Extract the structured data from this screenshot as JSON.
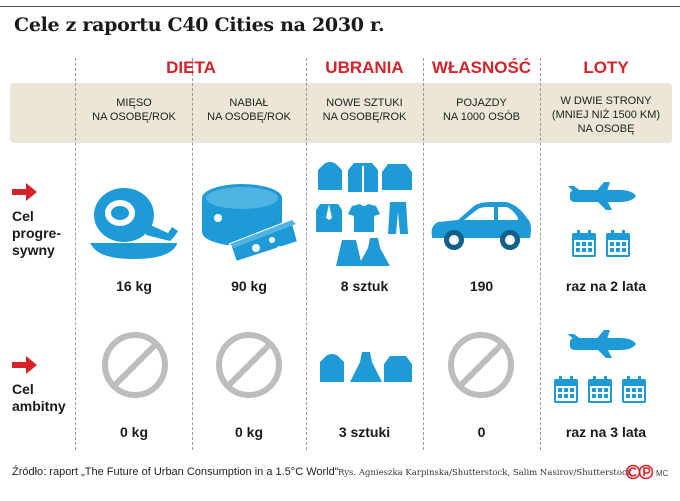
{
  "title": "Cele z raportu C40 Cities na 2030 r.",
  "categories": {
    "dieta": "DIETA",
    "ubrania": "UBRANIA",
    "wlasnosc": "WŁASNOŚĆ",
    "loty": "LOTY"
  },
  "columns": [
    {
      "header": [
        "MIĘSO",
        "NA OSOBĘ/ROK"
      ]
    },
    {
      "header": [
        "NABIAŁ",
        "NA OSOBĘ/ROK"
      ]
    },
    {
      "header": [
        "NOWE SZTUKI",
        "NA OSOBĘ/ROK"
      ]
    },
    {
      "header": [
        "POJAZDY",
        "NA 1000 OSÓB"
      ]
    },
    {
      "header": [
        "W DWIE STRONY",
        "(MNIEJ NIŻ 1500 KM)",
        "NA OSOBĘ"
      ]
    }
  ],
  "rows": [
    {
      "label": [
        "Cel",
        "progre-",
        "sywny"
      ],
      "values": [
        "16 kg",
        "90 kg",
        "8 sztuk",
        "190",
        "raz na 2 lata"
      ]
    },
    {
      "label": [
        "Cel",
        "ambitny"
      ],
      "values": [
        "0 kg",
        "0 kg",
        "3 sztuki",
        "0",
        "raz na 3 lata"
      ]
    }
  ],
  "footer": {
    "source": "Źródło: raport „The Future of Urban Consumption in a 1.5°C World\"",
    "credits": "Rys. Agnieszka Karpinska/Shutterstock, Salim Nasirov/Shutterstock",
    "mc": "MC"
  },
  "colors": {
    "accent_red": "#d5232a",
    "icon_blue": "#1e9ad6",
    "band": "#ece6d6",
    "prohibited_gray": "#bdbdbd"
  }
}
